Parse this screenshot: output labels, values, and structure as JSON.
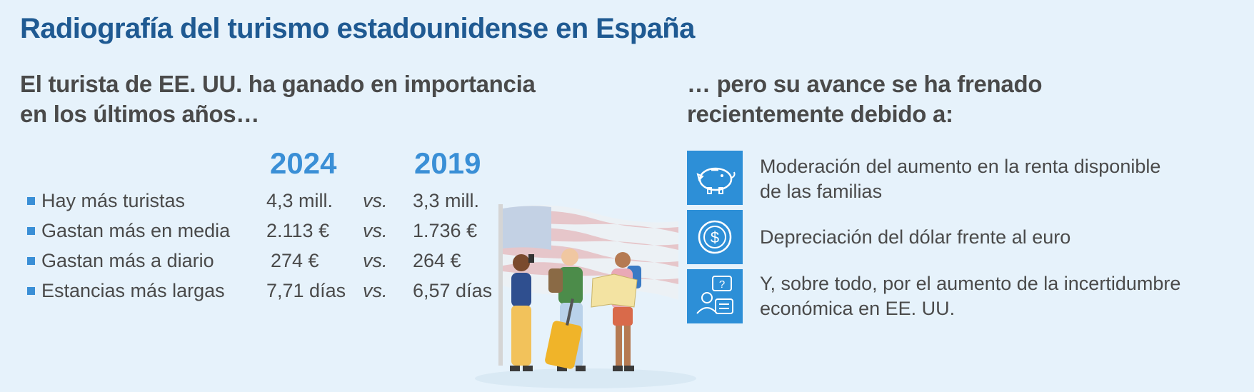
{
  "title": "Radiografía del turismo estadounidense en España",
  "left": {
    "subheading_line1": "El turista de EE. UU. ha ganado en importancia",
    "subheading_line2": "en los últimos años…",
    "year_a": "2024",
    "year_b": "2019",
    "vs": "vs.",
    "rows": [
      {
        "label": "Hay más turistas",
        "v2024": "4,3 mill.",
        "v2019": "3,3 mill."
      },
      {
        "label": "Gastan más en media",
        "v2024": "2.113 €",
        "v2019": "1.736 €"
      },
      {
        "label": "Gastan más a diario",
        "v2024": "274 €",
        "v2019": "264 €"
      },
      {
        "label": "Estancias más largas",
        "v2024": "7,71 días",
        "v2019": "6,57 días"
      }
    ],
    "bullet_color": "#3a8fd6"
  },
  "right": {
    "subheading_line1": "… pero su avance se ha frenado",
    "subheading_line2": "recientemente debido a:",
    "reasons": [
      {
        "icon": "piggy-bank-icon",
        "line1": "Moderación del aumento en la renta disponible",
        "line2": "de las familias"
      },
      {
        "icon": "dollar-coin-icon",
        "line1": "Depreciación del dólar frente al euro",
        "line2": ""
      },
      {
        "icon": "people-question-icon",
        "line1": "Y, sobre todo, por el aumento de la incertidumbre",
        "line2": "económica en EE. UU."
      }
    ],
    "icon_bg": "#2d8fd7"
  },
  "colors": {
    "background": "#e6f2fb",
    "title": "#1f5a92",
    "accent": "#3a8fd6",
    "text": "#4a4a4a"
  }
}
